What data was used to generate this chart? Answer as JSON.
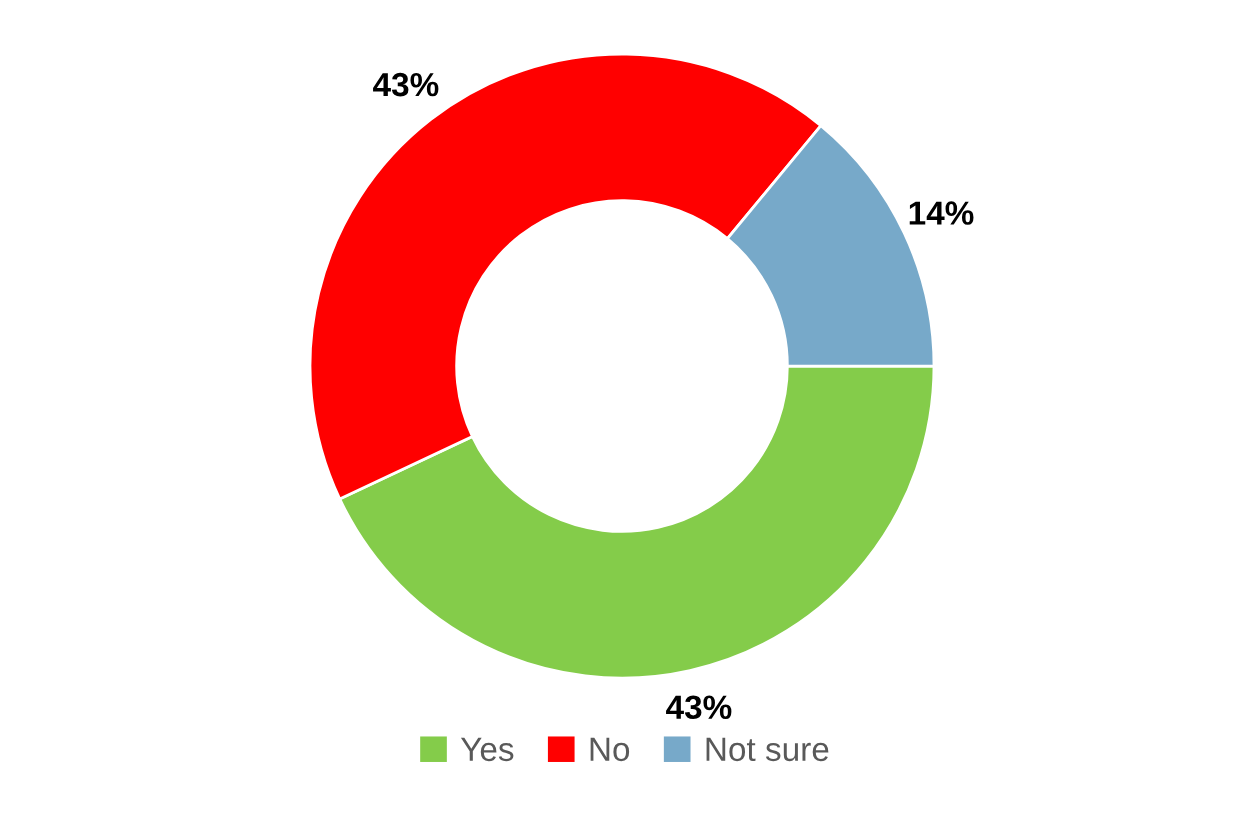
{
  "chart_data": {
    "type": "donut",
    "categories": [
      "Yes",
      "No",
      "Not sure"
    ],
    "values": [
      43,
      43,
      14
    ],
    "colors": [
      "#84cc4a",
      "#ff0000",
      "#77a9c9"
    ],
    "value_labels": [
      "43%",
      "43%",
      "14%"
    ],
    "legend": "bottom"
  }
}
